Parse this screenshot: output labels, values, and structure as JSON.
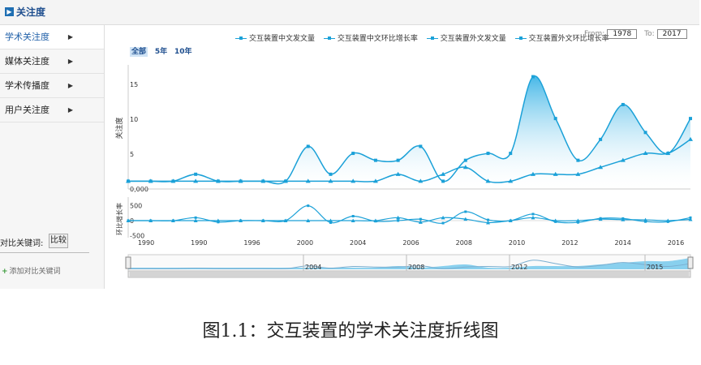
{
  "header": {
    "title": "关注度"
  },
  "sidebar": {
    "items": [
      {
        "label": "学术关注度",
        "active": true
      },
      {
        "label": "媒体关注度"
      },
      {
        "label": "学术传播度"
      },
      {
        "label": "用户关注度"
      }
    ],
    "keyword_label": "对比关键词:",
    "keyword_button": "比较",
    "add_keyword": "添加对比关键词"
  },
  "legend": [
    "交互装置中文发文量",
    "交互装置中文环比增长率",
    "交互装置外文发文量",
    "交互装置外文环比增长率"
  ],
  "range": {
    "from_label": "From:",
    "from": "1978",
    "to_label": "To:",
    "to": "2017"
  },
  "zoom": {
    "all": "全部",
    "five": "5年",
    "ten": "10年"
  },
  "colors": {
    "series": "#1ba1d8",
    "area_top": "#3db4e6",
    "area_bottom": "#ffffff"
  },
  "chart_data": {
    "type": "line",
    "ylabel": "关注度",
    "ylabel2": "环比增长率",
    "xticks": [
      "1990",
      "1990",
      "1996",
      "2000",
      "2004",
      "2006",
      "2008",
      "2010",
      "2012",
      "2014",
      "2016"
    ],
    "yticks": [
      "0,000",
      "5",
      "10",
      "15"
    ],
    "yticks2": [
      "500",
      "0",
      "-500"
    ],
    "series": [
      {
        "name": "交互装置中文发文量",
        "values": [
          1,
          1,
          1,
          2,
          1,
          1,
          1,
          1,
          6,
          2,
          5,
          4,
          4,
          6,
          1,
          4,
          5,
          5,
          16,
          10,
          4,
          7,
          12,
          8,
          5,
          10
        ]
      },
      {
        "name": "交互装置外文发文量",
        "values": [
          1,
          1,
          1,
          1,
          1,
          1,
          1,
          1,
          1,
          1,
          1,
          1,
          2,
          1,
          2,
          3,
          1,
          1,
          2,
          2,
          2,
          3,
          4,
          5,
          5,
          7
        ]
      }
    ],
    "growth_series": [
      {
        "name": "交互装置中文环比增长率",
        "values": [
          0,
          0,
          0,
          100,
          -50,
          0,
          0,
          0,
          500,
          -67,
          150,
          -20,
          0,
          50,
          -83,
          300,
          25,
          0,
          220,
          -38,
          -60,
          75,
          71,
          -33,
          -38,
          100
        ]
      },
      {
        "name": "交互装置外文环比增长率",
        "values": [
          0,
          0,
          0,
          0,
          0,
          0,
          0,
          0,
          0,
          0,
          0,
          0,
          100,
          -50,
          100,
          50,
          -67,
          0,
          100,
          0,
          0,
          50,
          33,
          25,
          0,
          40
        ]
      }
    ],
    "navigator_labels": [
      "2004",
      "2008",
      "2012",
      "2015"
    ]
  },
  "caption": "图1.1：交互装置的学术关注度折线图"
}
